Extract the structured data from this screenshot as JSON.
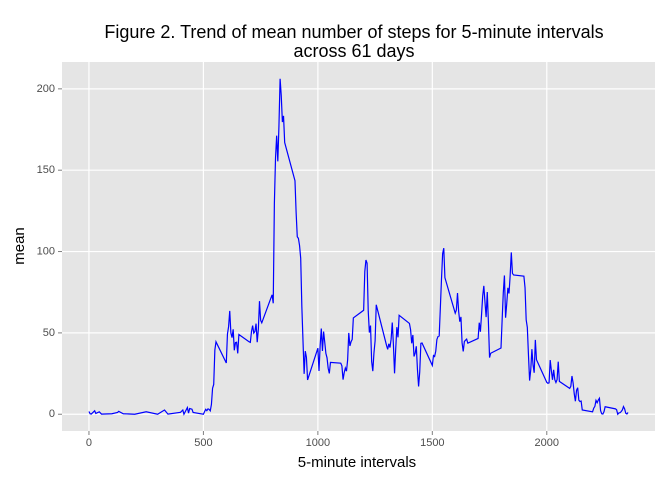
{
  "chart_data": {
    "type": "line",
    "title": [
      "Figure 2. Trend of mean number of steps for 5-minute intervals",
      "across 61 days"
    ],
    "x_label": "5-minute intervals",
    "y_label": "mean",
    "x": [
      0,
      5,
      10,
      25,
      30,
      45,
      55,
      100,
      125,
      130,
      150,
      200,
      250,
      300,
      330,
      345,
      400,
      410,
      415,
      430,
      435,
      440,
      450,
      455,
      500,
      505,
      510,
      515,
      520,
      525,
      530,
      535,
      540,
      545,
      550,
      555,
      600,
      605,
      610,
      615,
      620,
      625,
      630,
      635,
      640,
      645,
      650,
      655,
      700,
      705,
      710,
      715,
      720,
      725,
      730,
      735,
      740,
      745,
      750,
      755,
      800,
      805,
      810,
      815,
      820,
      825,
      830,
      835,
      840,
      845,
      850,
      855,
      900,
      905,
      910,
      915,
      920,
      925,
      930,
      935,
      940,
      945,
      950,
      955,
      1000,
      1005,
      1010,
      1015,
      1020,
      1025,
      1030,
      1035,
      1040,
      1045,
      1050,
      1055,
      1100,
      1105,
      1110,
      1115,
      1120,
      1125,
      1130,
      1135,
      1140,
      1145,
      1150,
      1155,
      1200,
      1205,
      1210,
      1215,
      1220,
      1225,
      1230,
      1235,
      1240,
      1245,
      1250,
      1255,
      1300,
      1305,
      1310,
      1315,
      1320,
      1325,
      1330,
      1335,
      1340,
      1345,
      1350,
      1355,
      1400,
      1405,
      1410,
      1415,
      1420,
      1425,
      1430,
      1435,
      1440,
      1445,
      1450,
      1455,
      1500,
      1505,
      1510,
      1515,
      1520,
      1525,
      1530,
      1535,
      1540,
      1545,
      1550,
      1555,
      1600,
      1605,
      1610,
      1615,
      1620,
      1625,
      1630,
      1635,
      1640,
      1645,
      1650,
      1655,
      1700,
      1705,
      1710,
      1715,
      1720,
      1725,
      1730,
      1735,
      1740,
      1745,
      1750,
      1755,
      1800,
      1805,
      1810,
      1815,
      1820,
      1825,
      1830,
      1835,
      1840,
      1845,
      1850,
      1855,
      1900,
      1905,
      1910,
      1915,
      1920,
      1925,
      1930,
      1935,
      1940,
      1945,
      1950,
      1955,
      2000,
      2005,
      2010,
      2015,
      2020,
      2025,
      2030,
      2035,
      2040,
      2045,
      2050,
      2055,
      2100,
      2105,
      2110,
      2115,
      2120,
      2125,
      2130,
      2135,
      2140,
      2145,
      2150,
      2155,
      2200,
      2205,
      2210,
      2215,
      2220,
      2225,
      2230,
      2235,
      2240,
      2245,
      2250,
      2255,
      2300,
      2305,
      2310,
      2315,
      2320,
      2325,
      2330,
      2335,
      2340,
      2345,
      2350,
      2355
    ],
    "series": [
      {
        "color": "#0000ff",
        "values": [
          1.7,
          0.3,
          0.1,
          2.1,
          0.5,
          1.5,
          0.1,
          0.3,
          1.1,
          1.8,
          0.3,
          0,
          1.5,
          0,
          2.6,
          0.1,
          1.2,
          2.6,
          0,
          4.1,
          0.7,
          3.5,
          3.1,
          1.1,
          0,
          1.6,
          3.0,
          2.2,
          3.3,
          3,
          2.1,
          6,
          16,
          18.3,
          39.5,
          44.5,
          31.5,
          49.3,
          53.8,
          63.5,
          50,
          47.1,
          52.2,
          39.3,
          44,
          44.2,
          37.4,
          49.0,
          44.5,
          44.2,
          50.8,
          54.5,
          49.9,
          50.9,
          55.7,
          44.3,
          52.3,
          69.5,
          57.8,
          56.2,
          73.4,
          68.2,
          129.4,
          157.5,
          171.2,
          155.4,
          177.3,
          206.2,
          195.9,
          179.6,
          183.4,
          167.0,
          143.5,
          124.0,
          109.1,
          108.1,
          103.7,
          95.9,
          66.2,
          45.2,
          24.8,
          38.8,
          35.0,
          21.1,
          40.6,
          26.6,
          42.4,
          52.7,
          38.9,
          50.8,
          44.3,
          37.4,
          34.7,
          28.3,
          25.1,
          31.9,
          31.4,
          29.7,
          21.3,
          25.5,
          28.4,
          26.5,
          33.4,
          50.0,
          42.0,
          44.6,
          46.0,
          59.2,
          63.9,
          87.7,
          94.8,
          92.8,
          63.4,
          50.2,
          54.5,
          32.4,
          26.5,
          37.7,
          45.1,
          67.3,
          42.3,
          39.9,
          43.3,
          40.98,
          46.2,
          56.4,
          42.8,
          25.1,
          39.97,
          53.5,
          47.3,
          60.8,
          55.8,
          51.96,
          43.6,
          48.7,
          35.5,
          37.5,
          41.8,
          27.5,
          17.1,
          26.1,
          43.6,
          43.8,
          30.0,
          36.1,
          35.5,
          38.8,
          45.96,
          47.8,
          48.1,
          65.3,
          82.9,
          98.7,
          102.1,
          83.96,
          62.1,
          64.1,
          74.5,
          63.2,
          56.9,
          59.8,
          43.9,
          38.6,
          44.7,
          45.5,
          46.2,
          43.7,
          46.6,
          56.3,
          50.7,
          61.2,
          72.7,
          78.9,
          68.9,
          59.7,
          75.1,
          56.5,
          34.8,
          37.5,
          40.7,
          58.0,
          74.7,
          85.3,
          59.3,
          67.8,
          77.7,
          74.2,
          85.3,
          99.5,
          86.6,
          85.6,
          84.9,
          77.8,
          58.0,
          53.4,
          36.3,
          20.7,
          27.4,
          40.0,
          30.2,
          25.5,
          45.7,
          33.5,
          19.6,
          19.0,
          19.3,
          33.3,
          26.8,
          21.2,
          27.3,
          21.3,
          19.5,
          21.3,
          32.3,
          20.2,
          15.9,
          17.2,
          23.5,
          19.2,
          12.5,
          8.0,
          14.7,
          16.3,
          8.7,
          7.8,
          8.1,
          2.6,
          1.5,
          3.7,
          4.8,
          8.5,
          7.1,
          8.7,
          9.8,
          2.2,
          0.3,
          0.1,
          1.6,
          4.6,
          3.3,
          2.8,
          0,
          0.8,
          0.96,
          1.6,
          2.6,
          4.7,
          3.3,
          0.6,
          0.2,
          1.1
        ]
      }
    ],
    "xlim": [
      -117.75,
      2472.75
    ],
    "xticks": [
      0,
      500,
      1000,
      1500,
      2000
    ],
    "ylim": [
      -10.3,
      216.5
    ],
    "yticks": [
      0,
      50,
      100,
      150,
      200
    ],
    "grid": true,
    "panel_color": "#e5e5e5"
  }
}
